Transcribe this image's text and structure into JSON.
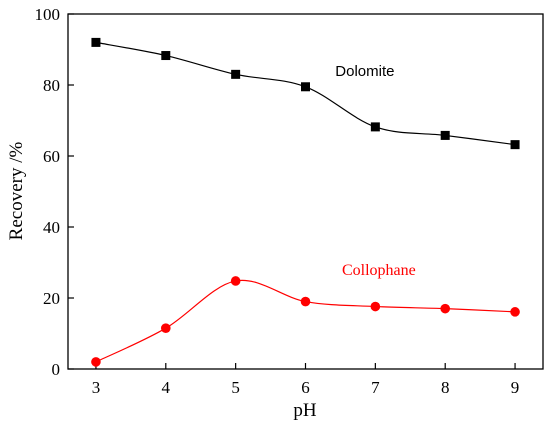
{
  "chart_data": {
    "type": "line",
    "xlabel": "pH",
    "ylabel": "Recovery /%",
    "xlim": [
      2.6,
      9.4
    ],
    "ylim": [
      0,
      100
    ],
    "xticks": [
      3,
      4,
      5,
      6,
      7,
      8,
      9
    ],
    "yticks": [
      0,
      20,
      40,
      60,
      80,
      100
    ],
    "x": [
      3,
      4,
      5,
      6,
      7,
      8,
      9
    ],
    "series": [
      {
        "name": "Dolomite",
        "values": [
          92.0,
          88.3,
          83.0,
          79.5,
          68.2,
          65.8,
          63.2
        ],
        "color": "#000000",
        "marker": "square"
      },
      {
        "name": "Collophane",
        "values": [
          2.0,
          11.5,
          24.8,
          19.0,
          17.6,
          17.0,
          16.1
        ],
        "color": "#ff0000",
        "marker": "circle"
      }
    ],
    "grid": false,
    "legend": "inline labels"
  }
}
